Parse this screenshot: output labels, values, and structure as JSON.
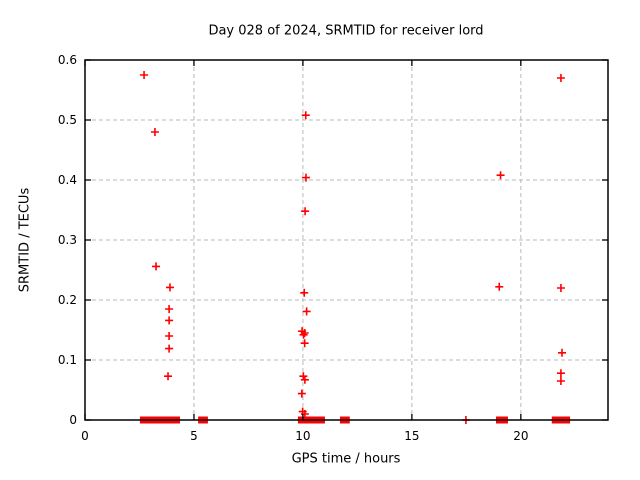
{
  "window": {
    "title": "Day 028 of 2024, SRMTID for receiver lord"
  },
  "chart_data": {
    "type": "scatter",
    "title": "Day 028 of 2024, SRMTID for receiver lord",
    "xlabel": "GPS time / hours",
    "ylabel": "SRMTID / TECUs",
    "xlim": [
      0,
      24
    ],
    "ylim": [
      0,
      0.6
    ],
    "xticks": [
      0,
      5,
      10,
      15,
      20
    ],
    "xtick_labels": [
      "0",
      "5",
      "10",
      "15",
      "20"
    ],
    "yticks": [
      0,
      0.1,
      0.2,
      0.3,
      0.4,
      0.5,
      0.6
    ],
    "ytick_labels": [
      "0",
      "0.1",
      "0.2",
      "0.3",
      "0.4",
      "0.5",
      "0.6"
    ],
    "grid": true,
    "legend": "none",
    "marker": {
      "shape": "plus",
      "color": "#ff0000",
      "size": 8
    },
    "colors": {
      "marker": "#ff0000",
      "grid": "#b8b8b8",
      "border": "#000000"
    },
    "points": [
      [
        2.71,
        0.575
      ],
      [
        3.21,
        0.48
      ],
      [
        3.26,
        0.256
      ],
      [
        3.9,
        0.221
      ],
      [
        3.86,
        0.185
      ],
      [
        3.86,
        0.166
      ],
      [
        3.86,
        0.14
      ],
      [
        3.86,
        0.119
      ],
      [
        3.81,
        0.073
      ],
      [
        10.13,
        0.508
      ],
      [
        10.14,
        0.404
      ],
      [
        10.1,
        0.348
      ],
      [
        10.06,
        0.212
      ],
      [
        10.17,
        0.181
      ],
      [
        9.96,
        0.148
      ],
      [
        10.08,
        0.145
      ],
      [
        10.03,
        0.142
      ],
      [
        10.08,
        0.128
      ],
      [
        10.02,
        0.073
      ],
      [
        10.09,
        0.067
      ],
      [
        9.95,
        0.044
      ],
      [
        9.99,
        0.014
      ],
      [
        10.09,
        0.01
      ],
      [
        17.48,
        0.0
      ],
      [
        19.07,
        0.408
      ],
      [
        19.01,
        0.222
      ],
      [
        21.84,
        0.57
      ],
      [
        21.84,
        0.22
      ],
      [
        21.89,
        0.112
      ],
      [
        21.84,
        0.078
      ],
      [
        21.84,
        0.065
      ]
    ],
    "zero_value_runs_hours": [
      [
        2.52,
        4.36
      ],
      [
        5.19,
        5.64
      ],
      [
        9.77,
        11.01
      ],
      [
        11.7,
        12.15
      ],
      [
        18.86,
        19.41
      ],
      [
        21.42,
        22.26
      ]
    ]
  }
}
